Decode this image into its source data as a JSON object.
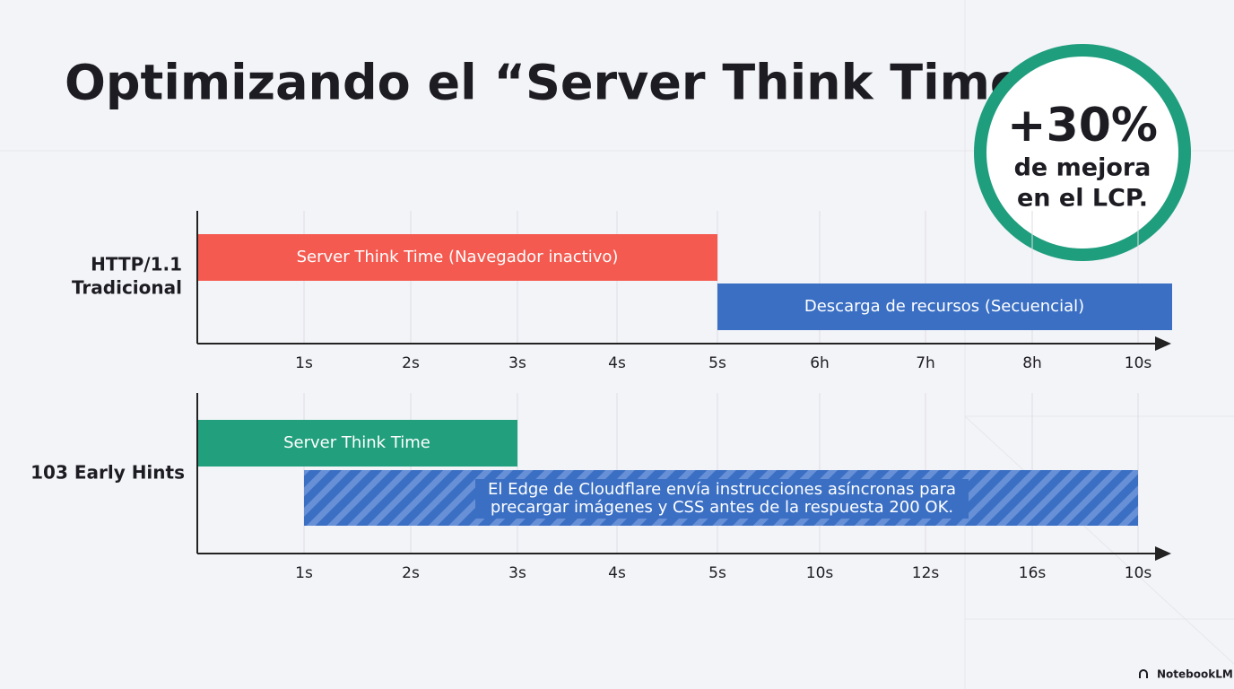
{
  "title": "Optimizando el “Server Think Time”",
  "badge": {
    "value": "+30%",
    "lines": [
      "de mejora",
      "en el LCP."
    ]
  },
  "rows": [
    {
      "label_lines": [
        "HTTP/1.1",
        "Tradicional"
      ],
      "bars": [
        {
          "label": "Server Think Time (Navegador inactivo)"
        },
        {
          "label": "Descarga de recursos (Secuencial)"
        }
      ],
      "ticks": [
        "1s",
        "2s",
        "3s",
        "4s",
        "5s",
        "6h",
        "7h",
        "8h",
        "10s"
      ]
    },
    {
      "label_lines": [
        "103 Early Hints"
      ],
      "bars": [
        {
          "label": "Server Think Time"
        },
        {
          "label_lines": [
            "El Edge de Cloudflare envía instrucciones asíncronas para",
            "precargar imágenes y CSS antes de la respuesta 200 OK."
          ]
        }
      ],
      "ticks": [
        "1s",
        "2s",
        "3s",
        "4s",
        "5s",
        "10s",
        "12s",
        "16s",
        "10s"
      ]
    }
  ],
  "watermark": "NotebookLM"
}
